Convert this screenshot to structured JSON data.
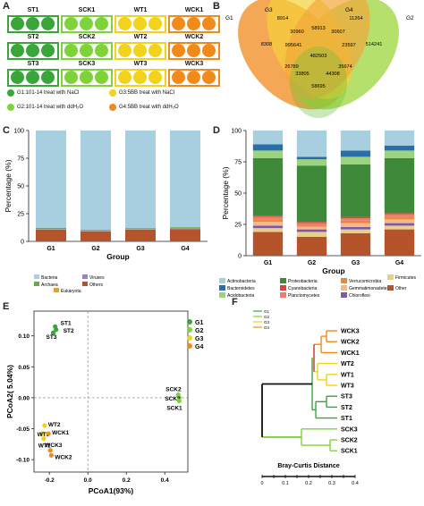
{
  "panels": {
    "a": "A",
    "b": "B",
    "c": "C",
    "d": "D",
    "e": "E",
    "f": "F"
  },
  "colors": {
    "g1": "#3aa63a",
    "g2": "#7fd33a",
    "g3": "#f2d21b",
    "g4": "#f08a1b"
  },
  "panel_a": {
    "rows": [
      [
        "ST1",
        "SCK1",
        "WT1",
        "WCK1"
      ],
      [
        "ST2",
        "SCK2",
        "WT2",
        "WCK2"
      ],
      [
        "ST3",
        "SCK3",
        "WT3",
        "WCK3"
      ]
    ],
    "legend": [
      {
        "label": "G1:101-14 treat with NaCl",
        "color": "#3aa63a"
      },
      {
        "label": "G3:5BB treat with NaCl",
        "color": "#f2d21b"
      },
      {
        "label": "G2:101-14 treat with ddH₂O",
        "color": "#7fd33a"
      },
      {
        "label": "G4:5BB treat with ddH₂O",
        "color": "#f08a1b"
      }
    ]
  },
  "chart_data": [
    {
      "type": "venn",
      "sets": [
        "G1",
        "G3",
        "G4",
        "G2"
      ],
      "values": [
        "8914",
        "11264",
        "30960",
        "58913",
        "30607",
        "8308",
        "995641",
        "23597",
        "514241",
        "482503",
        "26789",
        "35674",
        "33805",
        "44308",
        "58695"
      ]
    },
    {
      "type": "bar",
      "categories": [
        "G1",
        "G2",
        "G3",
        "G4"
      ],
      "xlabel": "Group",
      "ylabel": "Percentage (%)",
      "ylim": [
        0,
        100
      ],
      "yticks": [
        "0",
        "25",
        "50",
        "75",
        "100"
      ],
      "series": [
        {
          "name": "Others",
          "color": "#b5532a",
          "values": [
            10.5,
            9,
            10.5,
            11
          ]
        },
        {
          "name": "Viruses",
          "color": "#9b7fc0",
          "values": [
            0.3,
            0.3,
            0.3,
            0.3
          ]
        },
        {
          "name": "Eukaryota",
          "color": "#d9a23a",
          "values": [
            0.3,
            0.3,
            0.3,
            0.3
          ]
        },
        {
          "name": "Archaea",
          "color": "#6aa843",
          "values": [
            1.2,
            0.8,
            0.9,
            1.2
          ]
        },
        {
          "name": "Bacteria",
          "color": "#a8cfe0",
          "values": [
            87.7,
            89.6,
            88,
            87.2
          ]
        }
      ]
    },
    {
      "type": "bar",
      "categories": [
        "G1",
        "G2",
        "G3",
        "G4"
      ],
      "xlabel": "Group",
      "ylabel": "Percentage (%)",
      "ylim": [
        0,
        100
      ],
      "yticks": [
        "0",
        "25",
        "50",
        "75",
        "100"
      ],
      "series": [
        {
          "name": "Other",
          "color": "#b5532a",
          "values": [
            19,
            15,
            18,
            21
          ]
        },
        {
          "name": "Firmicutes",
          "color": "#e8d08a",
          "values": [
            3,
            4,
            3,
            3
          ]
        },
        {
          "name": "Chloroflexi",
          "color": "#7d5aa8",
          "values": [
            2,
            2,
            2,
            2
          ]
        },
        {
          "name": "Gemmatimonadetes",
          "color": "#f4b88a",
          "values": [
            3,
            2,
            3,
            3
          ]
        },
        {
          "name": "Verrucomicrobia",
          "color": "#e88a3a",
          "values": [
            2,
            1,
            2,
            2
          ]
        },
        {
          "name": "Planctomycetes",
          "color": "#f07c6e",
          "values": [
            2,
            2,
            2,
            2
          ]
        },
        {
          "name": "Cyanobacteria",
          "color": "#e04040",
          "values": [
            1,
            1,
            1,
            1
          ]
        },
        {
          "name": "Proteobacteria",
          "color": "#3f8a3a",
          "values": [
            46,
            45,
            42,
            44
          ]
        },
        {
          "name": "Acidobacteria",
          "color": "#9cd47e",
          "values": [
            6,
            5,
            6,
            6
          ]
        },
        {
          "name": "Bacteroidetes",
          "color": "#2a6ea8",
          "values": [
            5,
            2,
            5,
            4
          ]
        },
        {
          "name": "Actinobacteria",
          "color": "#a8cfe0",
          "values": [
            11,
            21,
            16,
            12
          ]
        }
      ]
    },
    {
      "type": "scatter",
      "xlabel": "PCoA1(93%)",
      "ylabel": "PCoA2( 5.04%)",
      "xticks": [
        "-0.2",
        "0.0",
        "0.2",
        "0.4"
      ],
      "yticks": [
        "-0.10",
        "-0.05",
        "0.00",
        "0.05",
        "0.10"
      ],
      "xlim": [
        -0.28,
        0.52
      ],
      "ylim": [
        -0.12,
        0.14
      ],
      "legend": [
        "G1",
        "G2",
        "G3",
        "G4"
      ],
      "points": [
        {
          "label": "ST1",
          "group": "G1",
          "x": -0.17,
          "y": 0.115
        },
        {
          "label": "ST2",
          "group": "G1",
          "x": -0.165,
          "y": 0.11
        },
        {
          "label": "ST3",
          "group": "G1",
          "x": -0.18,
          "y": 0.105
        },
        {
          "label": "SCK2",
          "group": "G2",
          "x": 0.47,
          "y": 0.005
        },
        {
          "label": "SCK3",
          "group": "G2",
          "x": 0.475,
          "y": 0.0
        },
        {
          "label": "SCK1",
          "group": "G2",
          "x": 0.475,
          "y": -0.005
        },
        {
          "label": "WT2",
          "group": "G3",
          "x": -0.225,
          "y": -0.045
        },
        {
          "label": "WT3",
          "group": "G3",
          "x": -0.235,
          "y": -0.058
        },
        {
          "label": "WT1",
          "group": "G3",
          "x": -0.23,
          "y": -0.066
        },
        {
          "label": "WCK1",
          "group": "G4",
          "x": -0.205,
          "y": -0.058
        },
        {
          "label": "WCK3",
          "group": "G4",
          "x": -0.195,
          "y": -0.085
        },
        {
          "label": "WCK2",
          "group": "G4",
          "x": -0.19,
          "y": -0.093
        }
      ]
    },
    {
      "type": "dendrogram",
      "xlabel": "Bray-Curtis Distance",
      "xticks": [
        "0",
        "0.1",
        "0.2",
        "0.3",
        "0.4"
      ],
      "legend": [
        "G1",
        "G2",
        "G3",
        "G4"
      ],
      "leaves": [
        "WCK3",
        "WCK2",
        "WCK1",
        "WT2",
        "WT1",
        "WT3",
        "ST3",
        "ST2",
        "ST1",
        "SCK3",
        "SCK2",
        "SCK1"
      ]
    }
  ]
}
